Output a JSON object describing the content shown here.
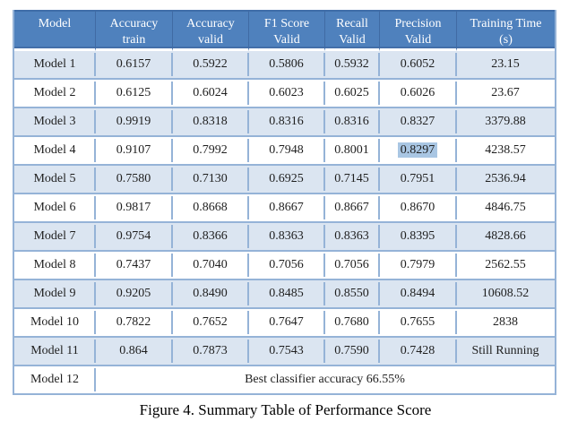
{
  "table": {
    "columns": [
      "Model",
      "Accuracy\ntrain",
      "Accuracy\nvalid",
      "F1 Score\nValid",
      "Recall\nValid",
      "Precision\nValid",
      "Training Time\n(s)"
    ],
    "rows": [
      {
        "model": "Model 1",
        "values": [
          "0.6157",
          "0.5922",
          "0.5806",
          "0.5932",
          "0.6052",
          "23.15"
        ]
      },
      {
        "model": "Model 2",
        "values": [
          "0.6125",
          "0.6024",
          "0.6023",
          "0.6025",
          "0.6026",
          "23.67"
        ]
      },
      {
        "model": "Model 3",
        "values": [
          "0.9919",
          "0.8318",
          "0.8316",
          "0.8316",
          "0.8327",
          "3379.88"
        ]
      },
      {
        "model": "Model 4",
        "values": [
          "0.9107",
          "0.7992",
          "0.7948",
          "0.8001",
          "0.8297",
          "4238.57"
        ]
      },
      {
        "model": "Model 5",
        "values": [
          "0.7580",
          "0.7130",
          "0.6925",
          "0.7145",
          "0.7951",
          "2536.94"
        ]
      },
      {
        "model": "Model 6",
        "values": [
          "0.9817",
          "0.8668",
          "0.8667",
          "0.8667",
          "0.8670",
          "4846.75"
        ]
      },
      {
        "model": "Model 7",
        "values": [
          "0.9754",
          "0.8366",
          "0.8363",
          "0.8363",
          "0.8395",
          "4828.66"
        ]
      },
      {
        "model": "Model 8",
        "values": [
          "0.7437",
          "0.7040",
          "0.7056",
          "0.7056",
          "0.7979",
          "2562.55"
        ]
      },
      {
        "model": "Model 9",
        "values": [
          "0.9205",
          "0.8490",
          "0.8485",
          "0.8550",
          "0.8494",
          "10608.52"
        ]
      },
      {
        "model": "Model 10",
        "values": [
          "0.7822",
          "0.7652",
          "0.7647",
          "0.7680",
          "0.7655",
          "2838"
        ]
      },
      {
        "model": "Model 11",
        "values": [
          "0.864",
          "0.7873",
          "0.7543",
          "0.7590",
          "0.7428",
          "Still Running"
        ]
      },
      {
        "model": "Model 12",
        "span_text": "Best classifier accuracy 66.55%"
      }
    ],
    "highlight": {
      "row_index": 3,
      "col_index": 4,
      "value": "0.8297"
    }
  },
  "caption": "Figure 4. Summary Table of Performance Score",
  "colors": {
    "header_bg": "#4f81bd",
    "header_edge": "#3f6da8",
    "row_alt_bg": "#dbe5f1",
    "border": "#95b3d7",
    "highlight_bg": "#a9c6e3",
    "text": "#1f1f1f",
    "header_text": "#ffffff"
  }
}
